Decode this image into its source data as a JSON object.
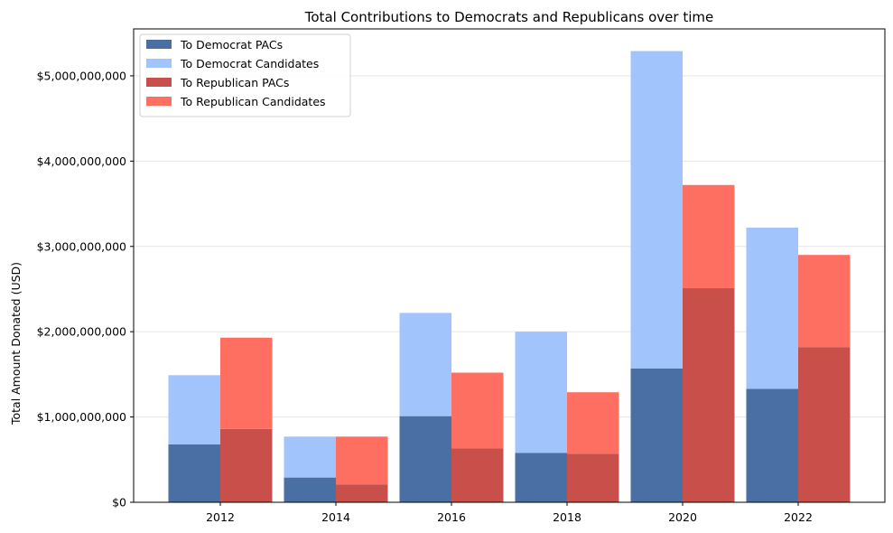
{
  "chart_data": {
    "type": "bar",
    "title": "Total Contributions to Democrats and Republicans over time",
    "xlabel": "",
    "ylabel": "Total Amount Donated (USD)",
    "categories": [
      "2012",
      "2014",
      "2016",
      "2018",
      "2020",
      "2022"
    ],
    "ylim": [
      0,
      5550000000
    ],
    "yticks": [
      0,
      1000000000,
      2000000000,
      3000000000,
      4000000000,
      5000000000
    ],
    "ytick_labels": [
      "$0",
      "$1,000,000,000",
      "$2,000,000,000",
      "$3,000,000,000",
      "$4,000,000,000",
      "$5,000,000,000"
    ],
    "grid": "y",
    "legend_position": "top-left",
    "stacked": true,
    "series": [
      {
        "name": "To Democrat PACs",
        "group": "Democrat",
        "color": "#4a6fa5",
        "values": [
          680000000,
          290000000,
          1010000000,
          580000000,
          1570000000,
          1330000000
        ]
      },
      {
        "name": "To Democrat Candidates",
        "group": "Democrat",
        "color": "#a1c4fd",
        "values": [
          810000000,
          480000000,
          1210000000,
          1420000000,
          3720000000,
          1890000000
        ]
      },
      {
        "name": "To Republican PACs",
        "group": "Republican",
        "color": "#c9504a",
        "values": [
          860000000,
          210000000,
          630000000,
          570000000,
          2510000000,
          1820000000
        ]
      },
      {
        "name": "To Republican Candidates",
        "group": "Republican",
        "color": "#ff6f61",
        "values": [
          1070000000,
          560000000,
          890000000,
          720000000,
          1210000000,
          1080000000
        ]
      }
    ]
  }
}
